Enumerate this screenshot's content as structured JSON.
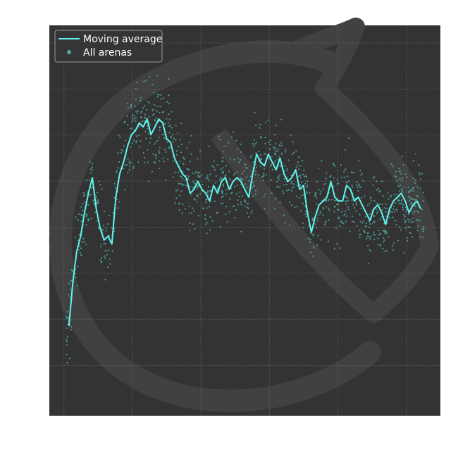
{
  "chart_data": {
    "type": "scatter",
    "title": "",
    "xlabel": "",
    "ylabel": "",
    "xlim": [
      0,
      100
    ],
    "ylim": [
      0,
      100
    ],
    "grid": true,
    "legend_position": "top-left",
    "colors": {
      "background": "#333333",
      "grid": "#6a6a6a",
      "line": "#5ff5ec",
      "scatter": "#4fa8a3",
      "watermark": "#414141",
      "legend_bg": "#353535",
      "legend_border": "#9a9a9a"
    },
    "series": [
      {
        "name": "Moving average",
        "kind": "line",
        "x": [
          5,
          6,
          7,
          8,
          9,
          10,
          11,
          12,
          13,
          14,
          15,
          16,
          17,
          18,
          19,
          20,
          21,
          22,
          23,
          24,
          25,
          26,
          27,
          28,
          29,
          30,
          31,
          32,
          33,
          34,
          35,
          36,
          37,
          38,
          39,
          40,
          41,
          42,
          43,
          44,
          45,
          46,
          47,
          48,
          49,
          50,
          51,
          52,
          53,
          54,
          55,
          56,
          57,
          58,
          59,
          60,
          61,
          62,
          63,
          64,
          65,
          66,
          67,
          68,
          69,
          70,
          71,
          72,
          73,
          74,
          75,
          76,
          77,
          78,
          79,
          80,
          81,
          82,
          83,
          84,
          85,
          86,
          87,
          88,
          89,
          90,
          91,
          92,
          93,
          94,
          95
        ],
        "y": [
          23,
          34,
          42,
          46,
          52,
          57,
          61,
          53,
          48,
          45,
          46,
          44,
          56,
          62,
          65,
          69,
          72,
          73,
          75,
          74,
          76,
          72,
          74,
          76,
          75,
          71,
          70,
          66,
          64,
          62,
          61,
          57,
          58,
          60,
          58,
          57,
          55,
          59,
          57,
          60,
          61,
          58,
          60,
          61,
          60,
          58,
          56,
          62,
          67,
          65,
          64,
          67,
          65,
          63,
          66,
          62,
          60,
          61,
          63,
          58,
          59,
          52,
          47,
          51,
          54,
          55,
          56,
          60,
          56,
          55,
          55,
          59,
          58,
          55,
          56,
          54,
          52,
          50,
          53,
          54,
          52,
          49,
          53,
          55,
          56,
          57,
          55,
          52,
          54,
          55,
          53
        ]
      },
      {
        "name": "All arenas",
        "kind": "scatter",
        "point_count": 1200
      }
    ]
  }
}
